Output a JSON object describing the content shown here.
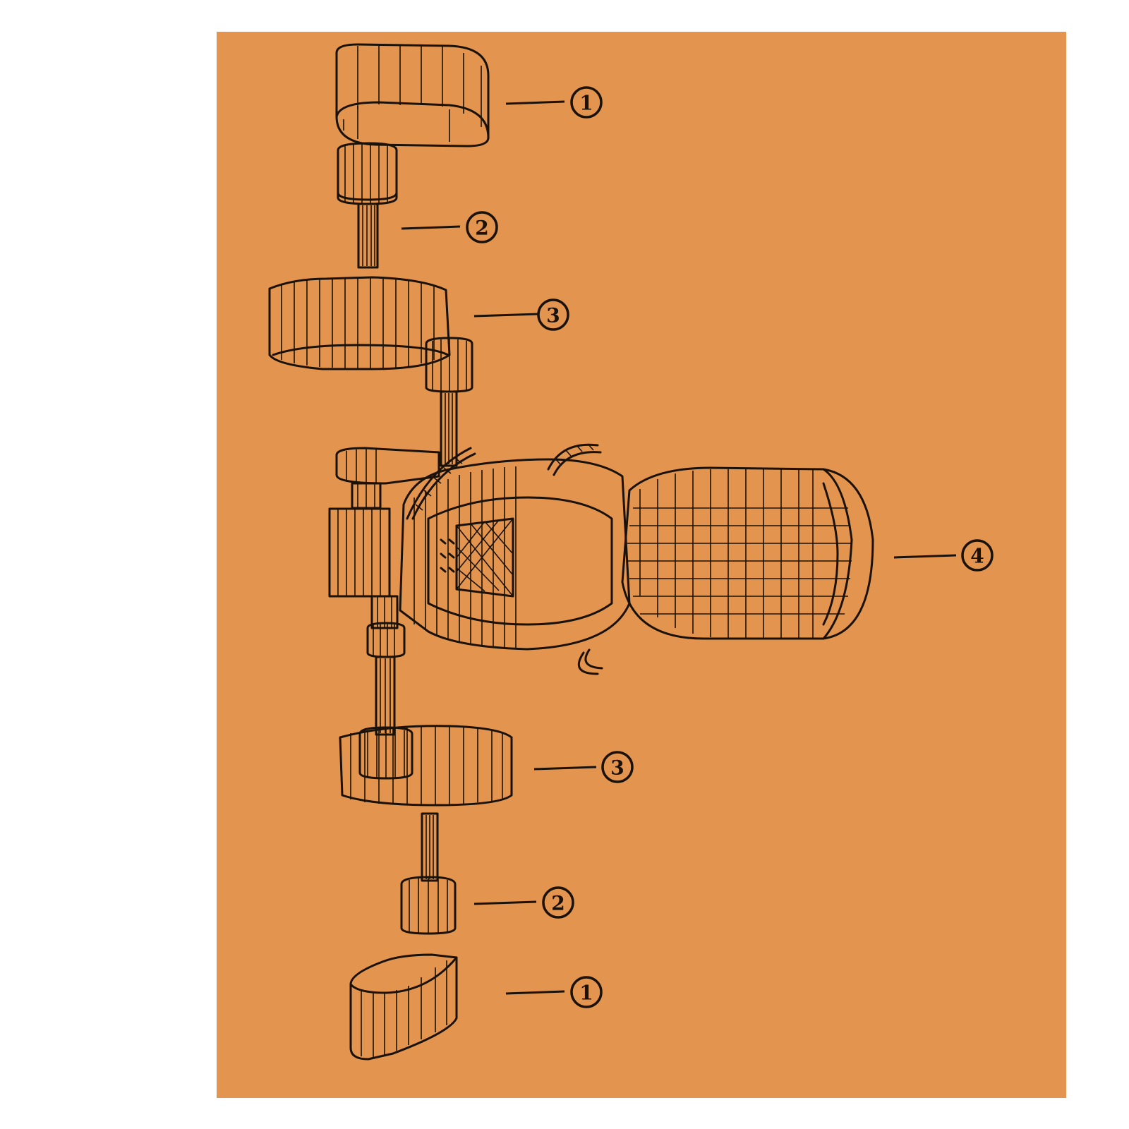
{
  "colors": {
    "background": "#ffffff",
    "panel": "#e3944f",
    "linework": "#1a1208"
  },
  "callouts": [
    {
      "id": "c1-top",
      "label": "1"
    },
    {
      "id": "c2-top",
      "label": "2"
    },
    {
      "id": "c3-top",
      "label": "3"
    },
    {
      "id": "c4",
      "label": "4"
    },
    {
      "id": "c3-bottom",
      "label": "3"
    },
    {
      "id": "c2-bottom",
      "label": "2"
    },
    {
      "id": "c1-bottom",
      "label": "1"
    }
  ]
}
